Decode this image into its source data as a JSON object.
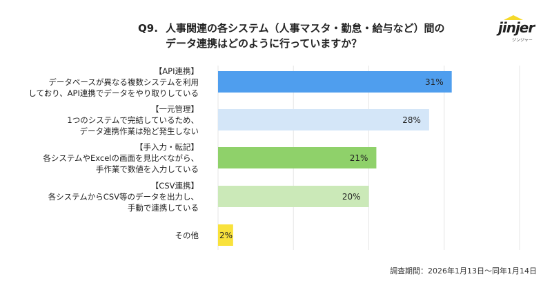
{
  "header": {
    "question_no": "Q9.",
    "title_line1": "人事関連の各システム（人事マスタ・勤怠・給与など）間の",
    "title_line2": "データ連携はどのように行っていますか？"
  },
  "logo": {
    "word": "jinjer",
    "kana": "ジンジャー"
  },
  "chart_data": {
    "type": "bar",
    "orientation": "horizontal",
    "categories": [
      [
        "【API連携】",
        "データベースが異なる複数システムを利用",
        "しており、API連携でデータをやり取りしている"
      ],
      [
        "【一元管理】",
        "1つのシステムで完結しているため、",
        "データ連携作業は殆ど発生しない"
      ],
      [
        "【手入力・転記】",
        "各システムやExcelの画面を見比べながら、",
        "手作業で数値を入力している"
      ],
      [
        "【CSV連携】",
        "各システムからCSV等のデータを出力し、",
        "手動で連携している"
      ],
      [
        "その他"
      ]
    ],
    "values": [
      31,
      28,
      21,
      20,
      2
    ],
    "data_labels": [
      "31%",
      "28%",
      "21%",
      "20%",
      "2%"
    ],
    "colors": [
      "#4f9eee",
      "#d4e6f8",
      "#8fd16a",
      "#cbe9b8",
      "#f9e23c"
    ],
    "xlim": [
      0,
      40
    ],
    "grid_values": [
      0,
      10,
      20,
      30,
      40
    ],
    "grid": true,
    "legend": "none"
  },
  "footer": {
    "survey_period": "調査期間：2026年1月13日〜同年1月14日"
  }
}
